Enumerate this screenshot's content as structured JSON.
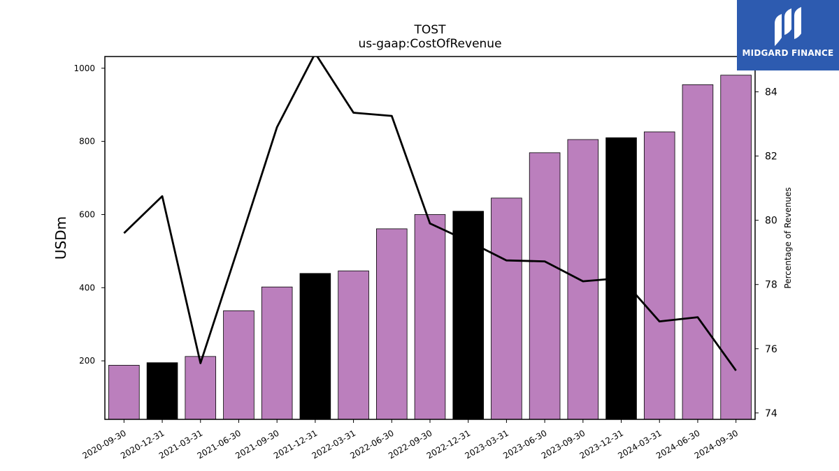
{
  "chart_data": {
    "type": "bar",
    "title": "TOST",
    "subtitle": "us-gaap:CostOfRevenue",
    "ylabel": "USDm",
    "y2label": "Percentage of Revenues",
    "ylim": [
      40,
      1032
    ],
    "y2lim": [
      73.8,
      85.1
    ],
    "yticks": [
      200,
      400,
      600,
      800,
      1000
    ],
    "y2ticks": [
      74,
      76,
      78,
      80,
      82,
      84
    ],
    "categories": [
      "2020-09-30",
      "2020-12-31",
      "2021-03-31",
      "2021-06-30",
      "2021-09-30",
      "2021-12-31",
      "2022-03-31",
      "2022-06-30",
      "2022-09-30",
      "2022-12-31",
      "2023-03-31",
      "2023-06-30",
      "2023-09-30",
      "2023-12-31",
      "2024-03-31",
      "2024-06-30",
      "2024-09-30"
    ],
    "series": [
      {
        "values": [
          188,
          195,
          212,
          337,
          402,
          439,
          446,
          561,
          600,
          609,
          645,
          769,
          805,
          810,
          826,
          955,
          981
        ],
        "bar_colors": [
          "#bb7fbd",
          "#000000",
          "#bb7fbd",
          "#bb7fbd",
          "#bb7fbd",
          "#000000",
          "#bb7fbd",
          "#bb7fbd",
          "#bb7fbd",
          "#000000",
          "#bb7fbd",
          "#bb7fbd",
          "#bb7fbd",
          "#000000",
          "#bb7fbd",
          "#bb7fbd",
          "#bb7fbd"
        ]
      },
      {
        "type": "line",
        "axis": "right",
        "values": [
          79.6,
          80.75,
          75.55,
          79.2,
          82.9,
          85.2,
          83.35,
          83.25,
          79.9,
          79.35,
          78.75,
          78.72,
          78.1,
          78.2,
          76.85,
          76.98,
          75.32
        ],
        "color": "#000000"
      }
    ],
    "grid": false
  },
  "logo": {
    "text": "MIDGARD FINANCE",
    "color": "#2d5bb0"
  }
}
